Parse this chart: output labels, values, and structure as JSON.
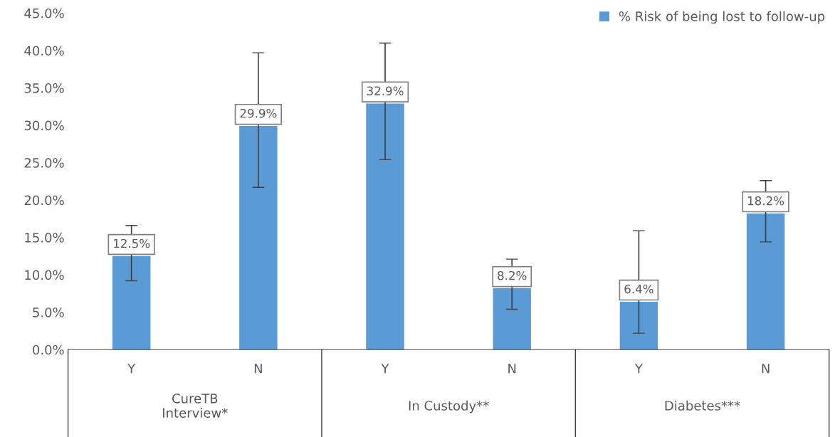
{
  "chart_data": {
    "type": "bar",
    "categories": [
      "Y",
      "N",
      "Y",
      "N",
      "Y",
      "N"
    ],
    "series": [
      {
        "name": "% Risk of being lost to follow-up",
        "color": "#5b9bd5",
        "values": [
          12.5,
          29.9,
          32.9,
          8.2,
          6.4,
          18.2
        ],
        "errors": [
          [
            9.2,
            16.6
          ],
          [
            21.7,
            39.7
          ],
          [
            25.4,
            41.0
          ],
          [
            5.4,
            12.1
          ],
          [
            2.2,
            15.9
          ],
          [
            14.4,
            22.6
          ]
        ],
        "value_labels": [
          "12.5%",
          "29.9%",
          "32.9%",
          "8.2%",
          "6.4%",
          "18.2%"
        ]
      }
    ],
    "annotations": [
      "CureTB\nInterview*",
      "In Custody**",
      "Diabetes***"
    ],
    "ylim": [
      0,
      45
    ],
    "yticks": [
      {
        "value": 0,
        "label": "0.0%"
      },
      {
        "value": 5,
        "label": "5.0%"
      },
      {
        "value": 10,
        "label": "10.0%"
      },
      {
        "value": 15,
        "label": "15.0%"
      },
      {
        "value": 20,
        "label": "20.0%"
      },
      {
        "value": 25,
        "label": "25.0%"
      },
      {
        "value": 30,
        "label": "30.0%"
      },
      {
        "value": 35,
        "label": "35.0%"
      },
      {
        "value": 40,
        "label": "40.0%"
      },
      {
        "value": 45,
        "label": "45.0%"
      }
    ],
    "grid": false,
    "legend": "top right"
  }
}
